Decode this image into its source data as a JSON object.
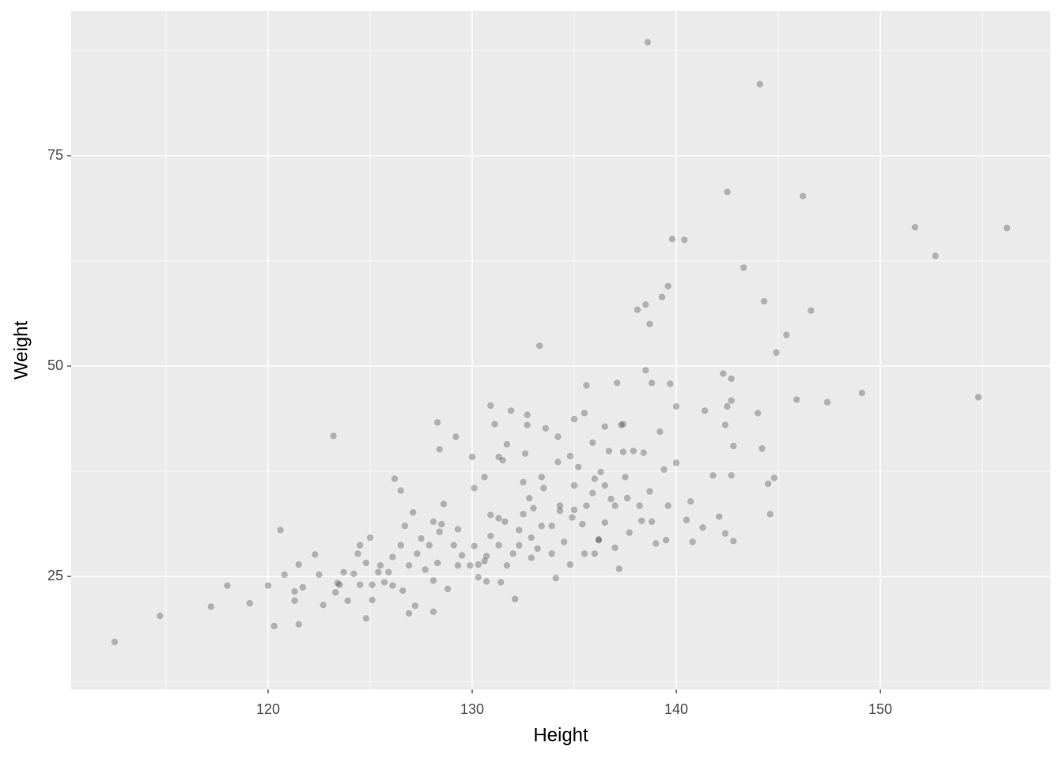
{
  "chart_data": {
    "type": "scatter",
    "x_label": "Height",
    "y_label": "Weight",
    "color": "#000000",
    "alpha": 0.25,
    "xlim": [
      110.35,
      158.33
    ],
    "ylim": [
      11.56,
      92.2
    ],
    "xticks": [
      120,
      130,
      140,
      150
    ],
    "yticks": [
      25,
      50,
      75
    ],
    "minor_xticks": [
      115,
      125,
      135,
      145,
      155
    ],
    "minor_yticks": [
      12.5,
      37.5,
      62.5,
      87.5
    ],
    "grid": true,
    "x": [
      112.48,
      114.7,
      117.2,
      118.0,
      119.1,
      120.0,
      120.3,
      120.6,
      120.8,
      121.5,
      121.5,
      121.3,
      121.3,
      121.7,
      122.3,
      122.5,
      123.2,
      122.7,
      123.3,
      123.4,
      123.7,
      124.2,
      124.5,
      125.0,
      124.8,
      125.1,
      125.4,
      125.9,
      126.2,
      126.5,
      126.7,
      126.1,
      126.6,
      126.9,
      127.1,
      127.2,
      127.5,
      127.7,
      128.1,
      128.1,
      128.3,
      128.4,
      128.3,
      128.4,
      128.5,
      128.6,
      128.8,
      129.2,
      129.3,
      129.5,
      130.0,
      130.1,
      130.1,
      130.3,
      130.6,
      130.7,
      130.9,
      130.9,
      131.1,
      131.3,
      131.4,
      131.5,
      131.6,
      131.9,
      131.7,
      132.1,
      132.3,
      132.5,
      132.7,
      132.7,
      132.8,
      132.9,
      133.0,
      133.3,
      133.2,
      133.5,
      133.6,
      133.9,
      134.1,
      134.2,
      134.3,
      134.5,
      134.8,
      134.8,
      135.0,
      135.0,
      135.2,
      135.4,
      135.5,
      135.6,
      135.9,
      136.0,
      136.2,
      136.2,
      136.3,
      136.5,
      136.5,
      136.7,
      136.8,
      137.0,
      137.1,
      137.2,
      137.3,
      137.4,
      137.4,
      137.7,
      137.9,
      138.1,
      138.3,
      138.4,
      138.5,
      138.5,
      138.6,
      138.7,
      138.8,
      139.0,
      139.2,
      139.3,
      139.4,
      139.5,
      139.6,
      139.7,
      139.8,
      140.0,
      140.0,
      140.4,
      140.5,
      140.7,
      140.8,
      141.3,
      141.4,
      141.8,
      142.1,
      142.3,
      142.4,
      142.4,
      142.5,
      142.5,
      142.7,
      142.7,
      142.7,
      142.8,
      142.8,
      143.3,
      144.0,
      144.1,
      144.2,
      144.3,
      144.5,
      144.6,
      144.8,
      144.9,
      145.4,
      145.9,
      146.2,
      146.6,
      147.4,
      149.1,
      151.7,
      152.7,
      154.8,
      156.2,
      124.4,
      124.8,
      125.1,
      125.5,
      125.7,
      126.1,
      126.5,
      126.9,
      127.3,
      127.9,
      128.1,
      129.1,
      129.3,
      129.9,
      130.3,
      130.7,
      130.9,
      131.3,
      131.7,
      132.0,
      132.3,
      132.5,
      132.9,
      133.4,
      133.9,
      134.3,
      134.9,
      135.5,
      135.6,
      136.0,
      137.0,
      137.6,
      138.2,
      138.8,
      139.6,
      123.9,
      123.5,
      124.5,
      130.6,
      131.3,
      132.6,
      133.4,
      134.2,
      135.0,
      135.9,
      136.5,
      137.5,
      138.7
    ],
    "y": [
      17.2,
      20.3,
      21.4,
      23.9,
      21.8,
      23.9,
      19.1,
      30.5,
      25.2,
      26.4,
      19.3,
      23.2,
      22.1,
      23.7,
      27.6,
      25.2,
      41.7,
      21.6,
      23.1,
      24.2,
      25.5,
      25.3,
      28.7,
      29.6,
      20.0,
      22.2,
      25.5,
      25.5,
      36.6,
      35.2,
      31.0,
      23.9,
      23.3,
      20.6,
      32.6,
      21.5,
      29.5,
      25.8,
      24.5,
      20.8,
      43.3,
      40.1,
      26.6,
      30.3,
      31.2,
      33.6,
      23.5,
      41.6,
      30.6,
      27.5,
      39.2,
      35.5,
      28.6,
      26.4,
      26.8,
      27.4,
      45.3,
      32.3,
      43.1,
      31.9,
      24.3,
      38.8,
      31.5,
      44.7,
      40.7,
      22.3,
      28.7,
      36.2,
      44.2,
      43.0,
      34.3,
      27.2,
      33.1,
      52.4,
      28.3,
      35.5,
      42.6,
      31.0,
      24.8,
      41.6,
      32.8,
      29.1,
      26.4,
      39.3,
      32.9,
      43.7,
      38.0,
      31.2,
      44.4,
      47.7,
      40.9,
      36.6,
      29.3,
      29.4,
      37.4,
      42.8,
      31.4,
      39.9,
      34.2,
      28.4,
      48.0,
      25.9,
      43.0,
      43.1,
      39.8,
      30.2,
      39.9,
      56.7,
      31.6,
      39.7,
      57.3,
      49.5,
      88.5,
      55.0,
      48.0,
      28.9,
      42.2,
      58.2,
      37.7,
      29.3,
      59.5,
      47.9,
      65.1,
      45.2,
      38.5,
      65.0,
      31.7,
      33.9,
      29.1,
      30.8,
      44.7,
      37.0,
      32.1,
      49.1,
      30.1,
      43.0,
      70.7,
      45.2,
      45.9,
      48.5,
      37.0,
      40.5,
      29.2,
      61.7,
      44.4,
      83.5,
      40.2,
      57.7,
      36.0,
      32.4,
      36.7,
      51.6,
      53.7,
      46.0,
      70.2,
      56.6,
      45.7,
      46.8,
      66.5,
      63.1,
      46.3,
      66.4,
      27.7,
      26.6,
      24.0,
      26.3,
      24.3,
      27.3,
      28.7,
      26.3,
      27.7,
      28.7,
      31.5,
      28.7,
      26.3,
      26.3,
      24.9,
      24.4,
      29.8,
      28.7,
      26.3,
      27.7,
      30.5,
      32.4,
      29.6,
      31.0,
      27.7,
      33.4,
      32.0,
      27.7,
      33.4,
      27.7,
      33.4,
      34.3,
      33.4,
      31.5,
      33.4,
      22.1,
      24.0,
      24.0,
      36.8,
      39.2,
      39.6,
      36.8,
      38.6,
      35.8,
      34.9,
      35.8,
      36.8,
      35.1
    ]
  }
}
